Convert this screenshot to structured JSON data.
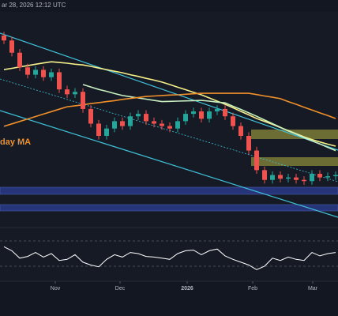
{
  "header": {
    "timestamp": "ar 28, 2026 12:12 UTC"
  },
  "chart_data": {
    "type": "candlestick",
    "ma_label": "day MA",
    "ylim": [
      47500,
      134700
    ],
    "xlim": [
      -0.5,
      42.3
    ],
    "xticks": [
      {
        "value": 6.5,
        "label": "Nov"
      },
      {
        "value": 14.7,
        "label": "Dec"
      },
      {
        "value": 23.2,
        "label": "2026"
      },
      {
        "value": 31.5,
        "label": "Feb"
      },
      {
        "value": 39.1,
        "label": "Mar"
      }
    ],
    "up_color": "#26a69a",
    "down_color": "#ef5350",
    "open": [
      125000,
      123000,
      118000,
      112000,
      109000,
      111000,
      108000,
      110000,
      103000,
      101000,
      102000,
      95000,
      89000,
      84000,
      87000,
      90000,
      88000,
      92000,
      93000,
      90000,
      89000,
      88000,
      87000,
      90000,
      93000,
      94000,
      91000,
      94000,
      95000,
      92000,
      88000,
      84000,
      78000,
      70000,
      66000,
      68000,
      66500,
      67000,
      66000,
      65500,
      68500,
      67000,
      67500
    ],
    "high": [
      126500,
      124500,
      119500,
      113500,
      112500,
      112500,
      111500,
      111500,
      104500,
      103500,
      103500,
      96500,
      90500,
      88500,
      91500,
      91500,
      93500,
      94500,
      94500,
      91500,
      90500,
      89500,
      91500,
      94500,
      95500,
      95500,
      95500,
      96500,
      96500,
      93500,
      89500,
      85500,
      79500,
      71500,
      69500,
      69500,
      68500,
      68500,
      67500,
      70000,
      70000,
      69000,
      69500
    ],
    "low": [
      121500,
      116500,
      110500,
      107500,
      107500,
      106500,
      106500,
      101500,
      99500,
      99500,
      93500,
      87500,
      82500,
      82500,
      85500,
      86500,
      86500,
      90500,
      88500,
      87500,
      86500,
      85500,
      85500,
      88500,
      91500,
      89500,
      89500,
      92500,
      90500,
      86500,
      82500,
      76500,
      68500,
      64500,
      64500,
      65000,
      65000,
      64500,
      64000,
      64000,
      65500,
      65500,
      66000
    ],
    "close": [
      123000,
      118000,
      112000,
      109000,
      111000,
      108000,
      110000,
      103000,
      101000,
      102000,
      95000,
      89000,
      84000,
      87000,
      90000,
      88000,
      92000,
      93000,
      90000,
      89000,
      88000,
      87000,
      90000,
      93000,
      94000,
      91000,
      94000,
      95000,
      92000,
      88000,
      84000,
      78000,
      70000,
      66000,
      68000,
      66500,
      67000,
      66000,
      65500,
      68500,
      67000,
      67500,
      68000
    ],
    "ma_series": [
      {
        "color": "#f5f08a",
        "values": [
          111100,
          111600,
          112200,
          112700,
          113300,
          113800,
          114300,
          114000,
          113700,
          113300,
          113000,
          112400,
          111700,
          111100,
          110400,
          109800,
          109000,
          108300,
          107500,
          106800,
          106000,
          105000,
          103900,
          102900,
          101800,
          100800,
          99500,
          98200,
          96900,
          95500,
          94000,
          92600,
          91100,
          89900,
          88700,
          87400,
          86200,
          84900,
          83600,
          82500,
          81500,
          80600,
          79800
        ]
      },
      {
        "color": "#c8f0c0",
        "values": [
          null,
          null,
          null,
          null,
          null,
          null,
          null,
          null,
          null,
          null,
          105000,
          104000,
          103000,
          102200,
          101300,
          100500,
          100000,
          99500,
          99000,
          98500,
          98000,
          98100,
          98200,
          98300,
          98400,
          98500,
          98200,
          97800,
          97500,
          96100,
          94800,
          93400,
          92000,
          90500,
          89000,
          87500,
          86000,
          84700,
          83300,
          82000,
          80700,
          79300,
          78000
        ]
      },
      {
        "color": "#f0902a",
        "values": [
          87900,
          88900,
          89900,
          90900,
          91900,
          92900,
          93900,
          94900,
          95900,
          96300,
          96700,
          97200,
          97600,
          98000,
          98400,
          98900,
          99300,
          99700,
          100100,
          100300,
          100500,
          100700,
          100800,
          101000,
          101200,
          101400,
          101400,
          101400,
          101400,
          101400,
          101400,
          101400,
          100900,
          100300,
          99800,
          99200,
          98000,
          96900,
          95700,
          94600,
          93400,
          92300,
          91100
        ]
      }
    ],
    "rsi": {
      "color": "#ffffff",
      "ylim": [
        10,
        90
      ],
      "values": [
        62,
        55,
        42,
        45,
        52,
        44,
        50,
        38,
        40,
        48,
        35,
        30,
        27,
        40,
        48,
        44,
        52,
        50,
        45,
        44,
        42,
        40,
        50,
        55,
        56,
        48,
        55,
        58,
        46,
        40,
        35,
        30,
        22,
        28,
        42,
        38,
        44,
        40,
        38,
        52,
        46,
        50,
        52
      ]
    }
  }
}
